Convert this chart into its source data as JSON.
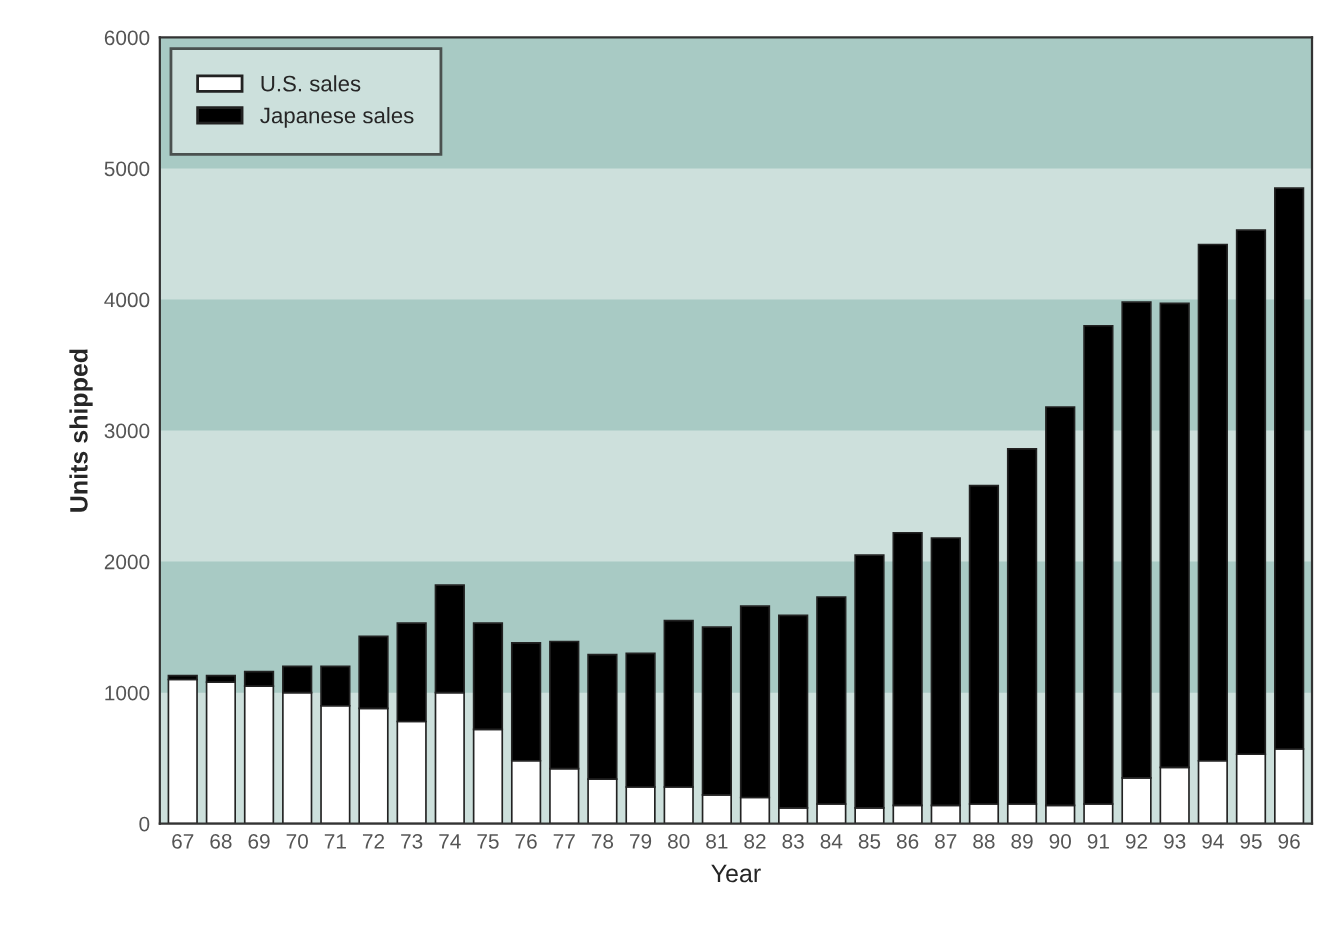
{
  "chart_data": {
    "type": "bar",
    "stacked": true,
    "xlabel": "Year",
    "ylabel": "Units shipped",
    "categories": [
      "67",
      "68",
      "69",
      "70",
      "71",
      "72",
      "73",
      "74",
      "75",
      "76",
      "77",
      "78",
      "79",
      "80",
      "81",
      "82",
      "83",
      "84",
      "85",
      "86",
      "87",
      "88",
      "89",
      "90",
      "91",
      "92",
      "93",
      "94",
      "95",
      "96"
    ],
    "series": [
      {
        "name": "U.S. sales",
        "color": "#ffffff",
        "values": [
          1100,
          1080,
          1050,
          1000,
          900,
          880,
          780,
          1000,
          720,
          480,
          420,
          340,
          280,
          280,
          220,
          200,
          120,
          150,
          120,
          140,
          140,
          150,
          150,
          140,
          150,
          350,
          430,
          480,
          530,
          570
        ]
      },
      {
        "name": "Japanese sales",
        "color": "#000000",
        "values": [
          30,
          50,
          110,
          200,
          300,
          550,
          750,
          820,
          810,
          900,
          970,
          950,
          1020,
          1270,
          1280,
          1460,
          1470,
          1580,
          1930,
          2080,
          2040,
          2430,
          2710,
          3040,
          3650,
          3630,
          3540,
          3940,
          4000,
          4280
        ]
      }
    ],
    "ylim": [
      0,
      6000
    ],
    "yticks": [
      0,
      1000,
      2000,
      3000,
      4000,
      5000,
      6000
    ],
    "grid": false,
    "legend": "top left",
    "bands": [
      {
        "axis": "y",
        "from": 1000,
        "to": 2000,
        "color": "#a8cac4"
      },
      {
        "axis": "y",
        "from": 3000,
        "to": 4000,
        "color": "#a8cac4"
      },
      {
        "axis": "y",
        "from": 5000,
        "to": 6000,
        "color": "#a8cac4"
      }
    ]
  }
}
